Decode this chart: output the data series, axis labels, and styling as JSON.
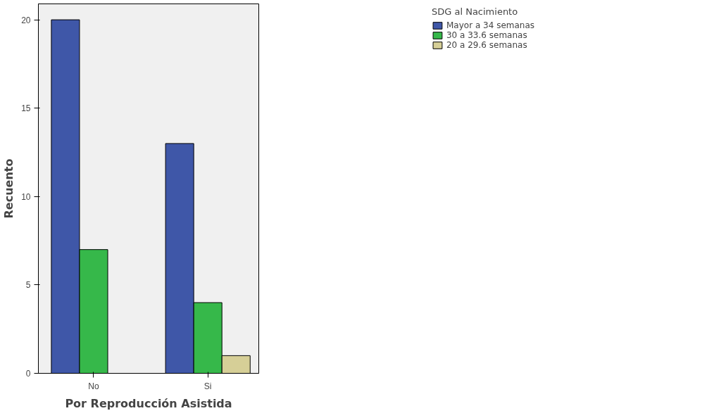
{
  "chart_data": {
    "type": "bar",
    "xlabel": "Por Reproducción Asistida",
    "ylabel": "Recuento",
    "legend_title": "SDG al Nacimiento",
    "categories": [
      "No",
      "Si"
    ],
    "series": [
      {
        "name": "Mayor a 34 semanas",
        "color": "#3f57a8",
        "values": [
          20,
          13
        ]
      },
      {
        "name": "30 a 33.6 semanas",
        "color": "#36b84a",
        "values": [
          7,
          4
        ]
      },
      {
        "name": "20 a 29.6 semanas",
        "color": "#d6cf97",
        "values": [
          null,
          1
        ]
      }
    ],
    "ylim": [
      0,
      20.9
    ],
    "yticks": [
      0,
      5,
      10,
      15,
      20
    ],
    "grid": false,
    "legend": "right"
  }
}
